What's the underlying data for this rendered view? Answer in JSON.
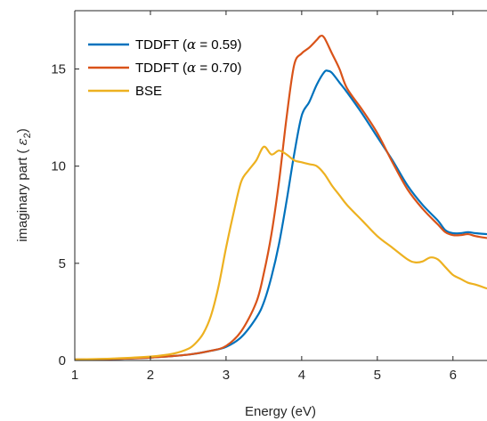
{
  "chart_data": {
    "type": "line",
    "title": "",
    "xlabel": "Energy (eV)",
    "ylabel_main": "imaginary part ( ",
    "ylabel_symbol": "ε",
    "ylabel_sub": "2",
    "ylabel_end": ")",
    "xlim": [
      1,
      6.45
    ],
    "ylim": [
      0,
      18
    ],
    "xticks": [
      1,
      2,
      3,
      4,
      5,
      6
    ],
    "yticks": [
      0,
      5,
      10,
      15
    ],
    "grid": false,
    "legend_position": "top-left",
    "series": [
      {
        "name_prefix": "TDDFT (",
        "name_symbol": "α",
        "name_suffix": " = 0.59)",
        "color": "#0072bd",
        "x": [
          1.0,
          1.5,
          2.0,
          2.5,
          2.8,
          3.0,
          3.2,
          3.4,
          3.5,
          3.6,
          3.7,
          3.8,
          3.9,
          4.0,
          4.1,
          4.2,
          4.3,
          4.35,
          4.4,
          4.5,
          4.6,
          4.8,
          5.0,
          5.2,
          5.4,
          5.6,
          5.8,
          5.9,
          6.0,
          6.1,
          6.2,
          6.3,
          6.45
        ],
        "y": [
          0.05,
          0.08,
          0.15,
          0.3,
          0.5,
          0.7,
          1.2,
          2.2,
          3.0,
          4.3,
          6.0,
          8.2,
          10.6,
          12.6,
          13.3,
          14.2,
          14.85,
          14.9,
          14.8,
          14.3,
          13.8,
          12.7,
          11.5,
          10.3,
          9.0,
          8.0,
          7.2,
          6.7,
          6.55,
          6.55,
          6.6,
          6.55,
          6.5
        ]
      },
      {
        "name_prefix": "TDDFT (",
        "name_symbol": "α",
        "name_suffix": " = 0.70)",
        "color": "#d95319",
        "x": [
          1.0,
          1.5,
          2.0,
          2.5,
          2.8,
          3.0,
          3.2,
          3.4,
          3.5,
          3.6,
          3.7,
          3.8,
          3.9,
          4.0,
          4.1,
          4.2,
          4.25,
          4.3,
          4.4,
          4.5,
          4.6,
          4.8,
          5.0,
          5.2,
          5.4,
          5.6,
          5.8,
          5.9,
          6.0,
          6.1,
          6.2,
          6.3,
          6.45
        ],
        "y": [
          0.05,
          0.08,
          0.15,
          0.3,
          0.5,
          0.75,
          1.5,
          3.0,
          4.5,
          6.5,
          9.2,
          12.5,
          15.2,
          15.8,
          16.1,
          16.5,
          16.7,
          16.6,
          15.8,
          15.0,
          14.0,
          12.9,
          11.7,
          10.2,
          8.8,
          7.8,
          7.0,
          6.6,
          6.45,
          6.45,
          6.5,
          6.4,
          6.3
        ]
      },
      {
        "name": "BSE",
        "color": "#edb120",
        "x": [
          1.0,
          1.5,
          2.0,
          2.3,
          2.5,
          2.6,
          2.7,
          2.8,
          2.9,
          3.0,
          3.1,
          3.2,
          3.3,
          3.4,
          3.5,
          3.6,
          3.7,
          3.8,
          3.9,
          4.0,
          4.1,
          4.2,
          4.3,
          4.4,
          4.5,
          4.6,
          4.8,
          5.0,
          5.2,
          5.4,
          5.5,
          5.6,
          5.7,
          5.8,
          5.9,
          6.0,
          6.1,
          6.2,
          6.3,
          6.45
        ],
        "y": [
          0.05,
          0.1,
          0.2,
          0.35,
          0.6,
          0.9,
          1.4,
          2.3,
          3.8,
          5.8,
          7.6,
          9.2,
          9.8,
          10.3,
          11.0,
          10.6,
          10.8,
          10.6,
          10.3,
          10.2,
          10.1,
          10.0,
          9.6,
          9.0,
          8.5,
          8.0,
          7.2,
          6.4,
          5.8,
          5.2,
          5.05,
          5.1,
          5.3,
          5.2,
          4.8,
          4.4,
          4.2,
          4.0,
          3.9,
          3.7
        ]
      }
    ]
  }
}
